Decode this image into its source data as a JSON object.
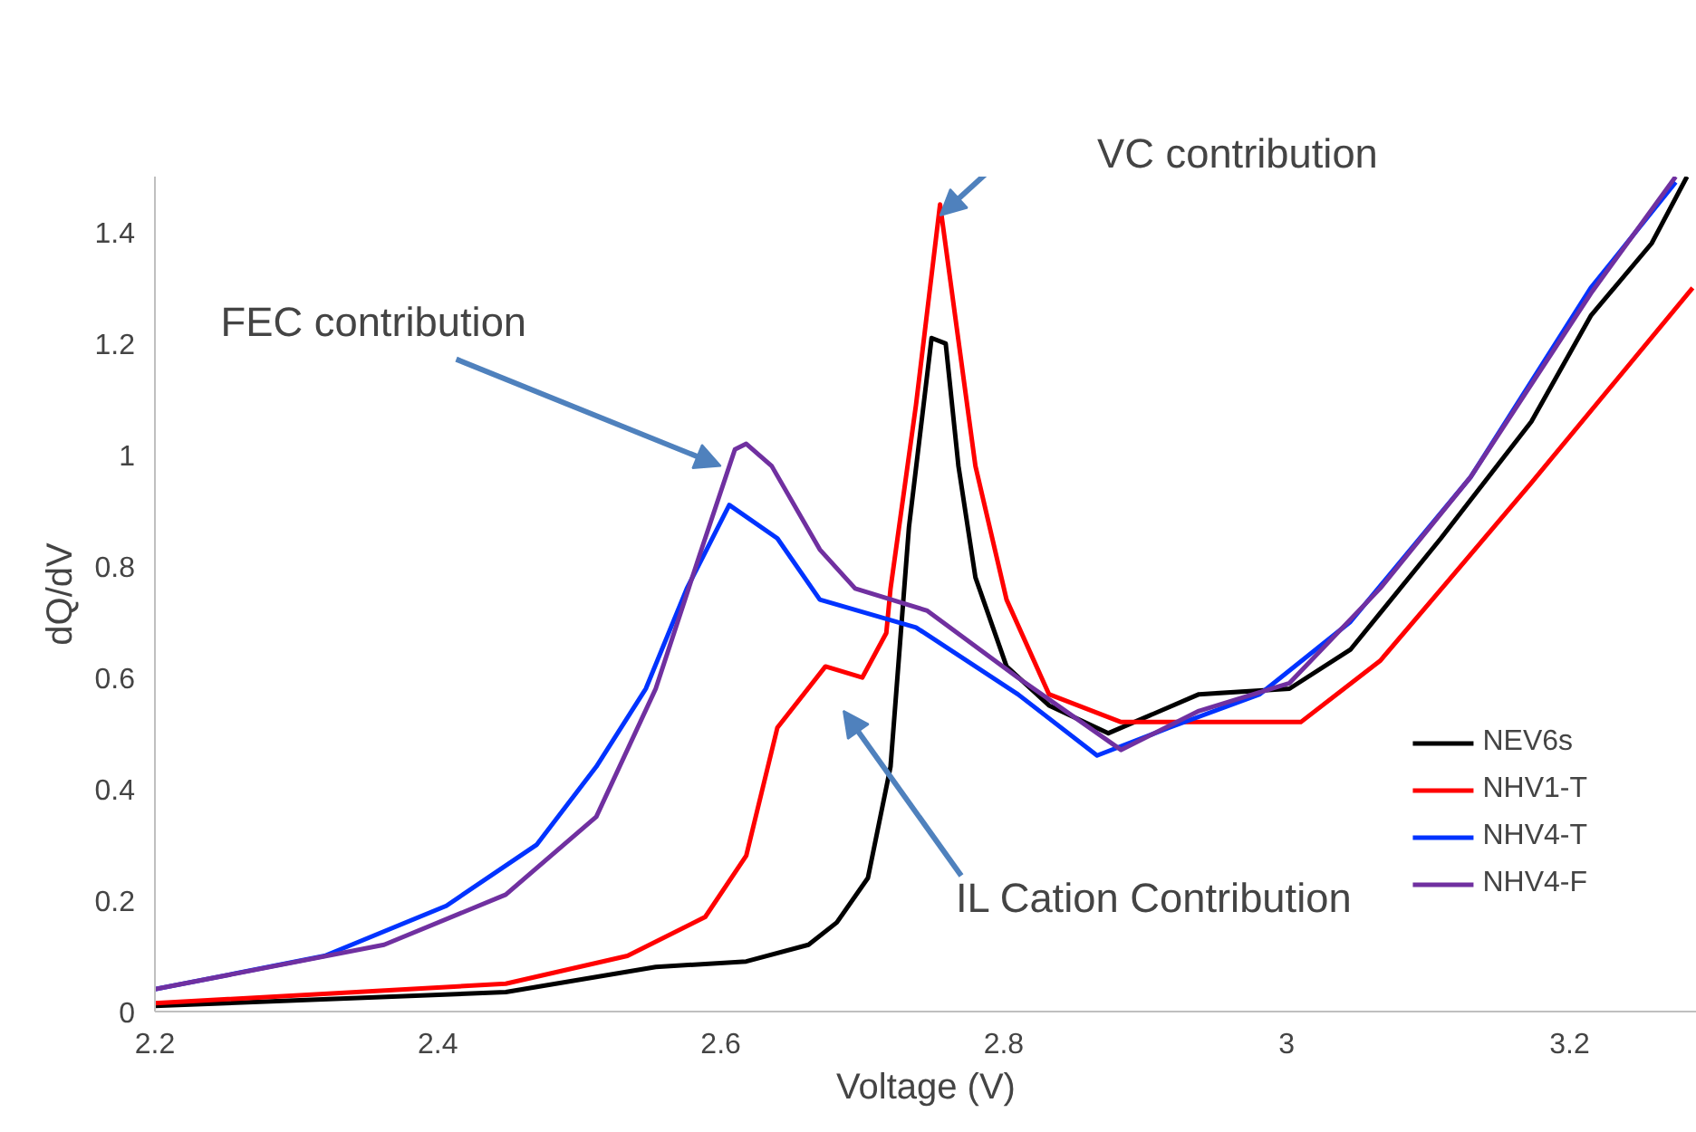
{
  "chart_data": {
    "type": "line",
    "xlabel": "Voltage (V)",
    "ylabel": "dQ/dV",
    "xlim": [
      2.2,
      3.29
    ],
    "xticks": [
      2.2,
      2.4,
      2.6,
      2.8,
      3,
      3.2
    ],
    "ylim": [
      0,
      1.5
    ],
    "yticks": [
      0,
      0.2,
      0.4,
      0.6,
      0.8,
      1,
      1.2,
      1.4
    ],
    "grid": false,
    "legend": "bottom right",
    "marker": "none",
    "line_style": "solid",
    "series": [
      {
        "name": "NEV6s",
        "color": "#000000",
        "x": [
          2.2,
          2.448,
          2.554,
          2.618,
          2.662,
          2.682,
          2.704,
          2.72,
          2.733,
          2.749,
          2.759,
          2.768,
          2.78,
          2.802,
          2.832,
          2.874,
          2.938,
          3.002,
          3.045,
          3.109,
          3.173,
          3.215,
          3.258,
          3.283
        ],
        "values": [
          0.01,
          0.035,
          0.08,
          0.09,
          0.12,
          0.16,
          0.24,
          0.44,
          0.87,
          1.21,
          1.2,
          0.98,
          0.78,
          0.62,
          0.55,
          0.5,
          0.57,
          0.58,
          0.65,
          0.85,
          1.06,
          1.25,
          1.38,
          1.5
        ]
      },
      {
        "name": "NHV1-T",
        "color": "#ff0000",
        "x": [
          2.2,
          2.448,
          2.534,
          2.589,
          2.618,
          2.64,
          2.674,
          2.7,
          2.717,
          2.72,
          2.738,
          2.755,
          2.78,
          2.802,
          2.832,
          2.883,
          3.01,
          3.066,
          3.113,
          3.173,
          3.287
        ],
        "values": [
          0.015,
          0.05,
          0.1,
          0.17,
          0.28,
          0.51,
          0.62,
          0.6,
          0.68,
          0.76,
          1.09,
          1.45,
          0.98,
          0.74,
          0.57,
          0.52,
          0.52,
          0.63,
          0.77,
          0.95,
          1.3
        ]
      },
      {
        "name": "NHV4-T",
        "color": "#0033ff",
        "x": [
          2.2,
          2.32,
          2.406,
          2.47,
          2.512,
          2.547,
          2.576,
          2.606,
          2.64,
          2.67,
          2.738,
          2.81,
          2.866,
          2.917,
          2.981,
          3.045,
          3.13,
          3.215,
          3.275
        ],
        "values": [
          0.04,
          0.1,
          0.19,
          0.3,
          0.44,
          0.58,
          0.76,
          0.91,
          0.85,
          0.74,
          0.69,
          0.57,
          0.46,
          0.51,
          0.57,
          0.7,
          0.96,
          1.3,
          1.49
        ]
      },
      {
        "name": "NHV4-F",
        "color": "#7030a0",
        "x": [
          2.2,
          2.362,
          2.448,
          2.512,
          2.554,
          2.585,
          2.61,
          2.618,
          2.636,
          2.67,
          2.695,
          2.746,
          2.81,
          2.883,
          2.938,
          3.002,
          3.066,
          3.13,
          3.215,
          3.275
        ],
        "values": [
          0.04,
          0.12,
          0.21,
          0.35,
          0.58,
          0.82,
          1.01,
          1.02,
          0.98,
          0.83,
          0.76,
          0.72,
          0.6,
          0.47,
          0.54,
          0.59,
          0.76,
          0.96,
          1.29,
          1.5
        ]
      }
    ],
    "annotations": [
      {
        "text": "VC contribution",
        "x": 2.755,
        "y": 1.43
      },
      {
        "text": "FEC contribution",
        "x": 2.6,
        "y": 0.98
      },
      "IL Cation Contribution"
    ]
  }
}
